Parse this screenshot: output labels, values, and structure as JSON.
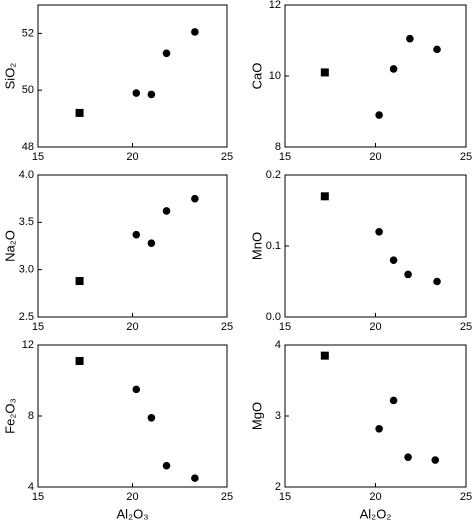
{
  "chart_data": [
    {
      "type": "scatter",
      "ylabel": "SiO₂",
      "xlim": [
        15,
        25
      ],
      "xticks": [
        15,
        20,
        25
      ],
      "ylim": [
        48,
        53
      ],
      "yticks": [
        48,
        50,
        52
      ],
      "series": [
        {
          "marker": "square",
          "color": "#000000",
          "x": [
            17.2
          ],
          "values": [
            49.2
          ]
        },
        {
          "marker": "circle",
          "color": "#000000",
          "x": [
            20.2,
            21.0,
            21.8,
            23.3
          ],
          "values": [
            49.9,
            49.85,
            51.3,
            52.05
          ]
        }
      ]
    },
    {
      "type": "scatter",
      "ylabel": "CaO",
      "xlim": [
        15,
        25
      ],
      "xticks": [
        15,
        20,
        25
      ],
      "ylim": [
        8,
        12
      ],
      "yticks": [
        8,
        10,
        12
      ],
      "series": [
        {
          "marker": "square",
          "color": "#000000",
          "x": [
            17.2
          ],
          "values": [
            10.1
          ]
        },
        {
          "marker": "circle",
          "color": "#000000",
          "x": [
            20.2,
            21.0,
            21.9,
            23.4
          ],
          "values": [
            8.9,
            10.2,
            11.05,
            10.75
          ]
        }
      ]
    },
    {
      "type": "scatter",
      "ylabel": "Na₂O",
      "xlim": [
        15,
        25
      ],
      "xticks": [
        15,
        20,
        25
      ],
      "ylim": [
        2.5,
        4.0
      ],
      "yticks": [
        2.5,
        {
          "value": 3,
          "label": "3.0"
        },
        3.5,
        {
          "value": 4,
          "label": "4.0"
        }
      ],
      "series": [
        {
          "marker": "square",
          "color": "#000000",
          "x": [
            17.2
          ],
          "values": [
            2.88
          ]
        },
        {
          "marker": "circle",
          "color": "#000000",
          "x": [
            20.2,
            21.0,
            21.8,
            23.3
          ],
          "values": [
            3.37,
            3.28,
            3.62,
            3.75
          ]
        }
      ]
    },
    {
      "type": "scatter",
      "ylabel": "MnO",
      "xlim": [
        15,
        25
      ],
      "xticks": [
        15,
        20,
        25
      ],
      "ylim": [
        0,
        0.2
      ],
      "yticks": [
        {
          "value": 0,
          "label": "0.0"
        },
        0.1,
        0.2
      ],
      "series": [
        {
          "marker": "square",
          "color": "#000000",
          "x": [
            17.2
          ],
          "values": [
            0.17
          ]
        },
        {
          "marker": "circle",
          "color": "#000000",
          "x": [
            20.2,
            21.0,
            21.8,
            23.4
          ],
          "values": [
            0.12,
            0.08,
            0.06,
            0.05
          ]
        }
      ]
    },
    {
      "type": "scatter",
      "ylabel": "Fe₂O₃",
      "xlabel": "Al₂O₃",
      "xlim": [
        15,
        25
      ],
      "xticks": [
        15,
        20,
        25
      ],
      "ylim": [
        4,
        12
      ],
      "yticks": [
        4,
        8,
        12
      ],
      "series": [
        {
          "marker": "square",
          "color": "#000000",
          "x": [
            17.2
          ],
          "values": [
            11.1
          ]
        },
        {
          "marker": "circle",
          "color": "#000000",
          "x": [
            20.2,
            21.0,
            21.8,
            23.3
          ],
          "values": [
            9.5,
            7.9,
            5.2,
            4.5
          ]
        }
      ]
    },
    {
      "type": "scatter",
      "ylabel": "MgO",
      "xlabel": "Al₂O₂",
      "xlim": [
        15,
        25
      ],
      "xticks": [
        15,
        20,
        25
      ],
      "ylim": [
        2,
        4
      ],
      "yticks": [
        2,
        3,
        4
      ],
      "series": [
        {
          "marker": "square",
          "color": "#000000",
          "x": [
            17.2
          ],
          "values": [
            3.85
          ]
        },
        {
          "marker": "circle",
          "color": "#000000",
          "x": [
            20.2,
            21.0,
            21.8,
            23.3
          ],
          "values": [
            2.82,
            3.22,
            2.42,
            2.38
          ]
        }
      ]
    }
  ]
}
